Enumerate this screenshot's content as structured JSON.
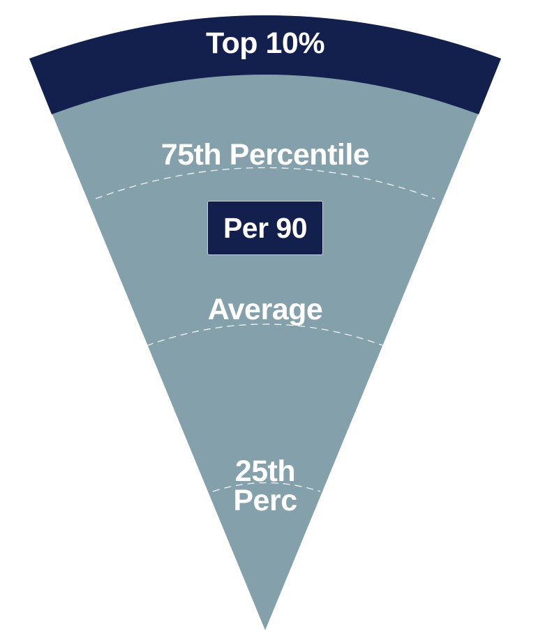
{
  "funnel": {
    "tiers": {
      "top": "Top 10%",
      "p75": "75th Percentile",
      "average": "Average",
      "p25_line1": "25th",
      "p25_line2": "Perc"
    },
    "badge": "Per 90"
  },
  "colors": {
    "navy": "#131f4d",
    "slate": "#84a1ab",
    "divider": "#ffffff",
    "text": "#ffffff"
  }
}
